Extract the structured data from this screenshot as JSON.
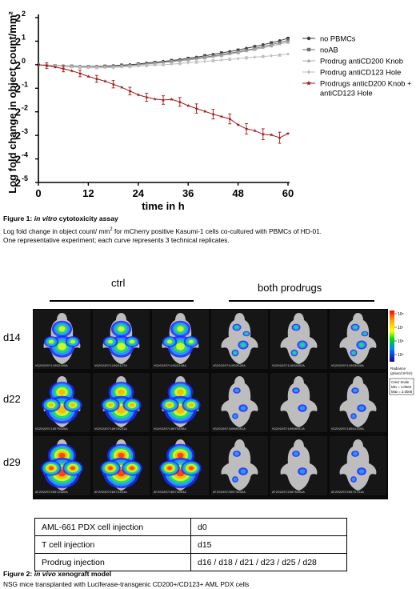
{
  "figure1": {
    "chart_data": {
      "type": "line",
      "xlabel": "time in h",
      "ylabel": "Log fold change in object count/mm²",
      "xlim": [
        0,
        60
      ],
      "ylim": [
        -5,
        2
      ],
      "x_ticks": [
        0,
        12,
        24,
        36,
        48,
        60
      ],
      "y_ticks": [
        {
          "base": "2",
          "exp": "2",
          "value": 2
        },
        {
          "base": "2",
          "exp": "1",
          "value": 1
        },
        {
          "base": "2",
          "exp": "0",
          "value": 0
        },
        {
          "base": "2",
          "exp": "-1",
          "value": -1
        },
        {
          "base": "2",
          "exp": "-2",
          "value": -2
        },
        {
          "base": "2",
          "exp": "-3",
          "value": -3
        },
        {
          "base": "2",
          "exp": "-4",
          "value": -4
        },
        {
          "base": "2",
          "exp": "-5",
          "value": -5
        }
      ],
      "y_scale": "log2",
      "legend_position": "right",
      "x": [
        0,
        2,
        4,
        6,
        8,
        10,
        12,
        14,
        16,
        18,
        20,
        22,
        24,
        26,
        28,
        30,
        32,
        34,
        36,
        38,
        40,
        42,
        44,
        46,
        48,
        50,
        52,
        54,
        56,
        58,
        60
      ],
      "series": [
        {
          "name": "no PBMCs",
          "color": "#3a3a3a",
          "marker": "circle",
          "values": [
            0,
            -0.02,
            -0.04,
            -0.05,
            -0.06,
            -0.07,
            -0.08,
            -0.07,
            -0.06,
            -0.04,
            -0.02,
            0.0,
            0.03,
            0.07,
            0.1,
            0.14,
            0.18,
            0.22,
            0.27,
            0.32,
            0.38,
            0.44,
            0.5,
            0.56,
            0.62,
            0.7,
            0.77,
            0.85,
            0.93,
            1.02,
            1.12
          ]
        },
        {
          "name": "noAB",
          "color": "#6e6e6e",
          "marker": "square",
          "values": [
            0,
            -0.02,
            -0.04,
            -0.06,
            -0.07,
            -0.08,
            -0.09,
            -0.09,
            -0.08,
            -0.07,
            -0.05,
            -0.03,
            0.0,
            0.03,
            0.07,
            0.1,
            0.14,
            0.18,
            0.22,
            0.27,
            0.32,
            0.37,
            0.43,
            0.49,
            0.55,
            0.62,
            0.69,
            0.77,
            0.85,
            0.94,
            1.03
          ]
        },
        {
          "name": "Prodrug antiCD200 Knob",
          "color": "#a8a8a8",
          "marker": "triangle",
          "values": [
            0,
            -0.02,
            -0.04,
            -0.06,
            -0.08,
            -0.09,
            -0.1,
            -0.1,
            -0.09,
            -0.08,
            -0.06,
            -0.04,
            -0.01,
            0.02,
            0.05,
            0.09,
            0.12,
            0.16,
            0.2,
            0.24,
            0.29,
            0.34,
            0.39,
            0.45,
            0.51,
            0.58,
            0.65,
            0.72,
            0.8,
            0.88,
            0.96
          ]
        },
        {
          "name": "Prodrug antiCD123 Hole",
          "color": "#bdbdbd",
          "marker": "diamond",
          "values": [
            0,
            -0.02,
            -0.05,
            -0.07,
            -0.09,
            -0.11,
            -0.13,
            -0.13,
            -0.13,
            -0.12,
            -0.1,
            -0.08,
            -0.06,
            -0.04,
            -0.02,
            0.0,
            0.02,
            0.05,
            0.08,
            0.11,
            0.14,
            0.17,
            0.2,
            0.23,
            0.26,
            0.29,
            0.32,
            0.35,
            0.38,
            0.41,
            0.45
          ]
        },
        {
          "name": "Prodrugs anticD200 Knob + antiCD123 Hole",
          "color": "#a31515",
          "marker": "star",
          "values": [
            0,
            -0.04,
            -0.1,
            -0.17,
            -0.26,
            -0.37,
            -0.5,
            -0.6,
            -0.7,
            -0.83,
            -0.96,
            -1.12,
            -1.28,
            -1.38,
            -1.46,
            -1.5,
            -1.47,
            -1.58,
            -1.74,
            -1.86,
            -1.98,
            -2.1,
            -2.2,
            -2.3,
            -2.55,
            -2.72,
            -2.8,
            -2.95,
            -2.98,
            -3.1,
            -2.92
          ]
        }
      ]
    },
    "legend_items": [
      "no PBMCs",
      "noAB",
      "Prodrug antiCD200 Knob",
      "Prodrug antiCD123 Hole",
      "Prodrugs anticD200 Knob +",
      "antiCD123 Hole"
    ],
    "caption_label": "Figure 1: ",
    "caption_italic": "in vitro",
    "caption_title_rest": " cytotoxicity assay",
    "caption_line1_a": "Log fold change in object count/ mm",
    "caption_line1_sup": "2",
    "caption_line1_b": " for mCherry positive Kasumi-1 cells co-cultured with PBMCs of HD-01.",
    "caption_line2": "One representative experiment; each curve represents 3 technical replicates."
  },
  "figure2": {
    "group_ctrl": "ctrl",
    "group_treated": "both prodrugs",
    "days": [
      "d14",
      "d22",
      "d29"
    ],
    "mouse_ids": [
      [
        "VG20220711092109A",
        "VG20220711092127A",
        "VG20220711092148A",
        "VG20220711092529A",
        "VG20220711092803A",
        "VG20220711093028A"
      ],
      [
        "VG20220719075829A",
        "VG20220719079931A",
        "VG20220719075836A",
        "VG20220719080301A",
        "VG20220719080811A",
        "VG20220719081150A"
      ],
      [
        "AF20220726072990A",
        "AF20220726073404A",
        "AF20220726074003A",
        "AF20220726074033A",
        "AF20220726075903A",
        "AF20220726075741A"
      ]
    ],
    "colorbar": {
      "ticks": [
        "10⁸",
        "10⁷",
        "10⁶",
        "10⁵"
      ],
      "title": "Radiance",
      "unit": "(p/sec/cm²/sr)",
      "scale_title": "Color Scale",
      "min": "Min = 1.00e5",
      "max": "Max = 2.00e8"
    },
    "protocol_table": [
      {
        "event": "AML-661 PDX cell injection",
        "day": "d0"
      },
      {
        "event": "T cell injection",
        "day": "d15"
      },
      {
        "event": "Prodrug injection",
        "day": "d16 / d18 / d21 / d23 / d25 / d28"
      }
    ],
    "caption_label": "Figure 2: ",
    "caption_italic": "in vivo",
    "caption_title_rest": " xenograft model",
    "caption_line1": "NSG mice transplanted with Luciferase-transgenic CD200+/CD123+ AML PDX cells"
  },
  "signal": {
    "ctrl": [
      0.55,
      0.85,
      1.0
    ],
    "treated": [
      0.5,
      0.35,
      0.38
    ]
  }
}
